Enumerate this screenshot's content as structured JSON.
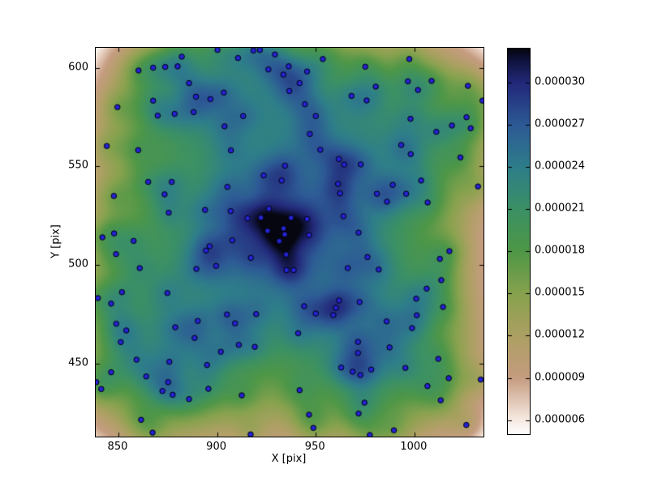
{
  "figure": {
    "background": "#ffffff"
  },
  "chart_data": {
    "type": "scatter",
    "title": "",
    "xlabel": "X [pix]",
    "ylabel": "Y [pix]",
    "xlim": [
      838.5,
      1035.0
    ],
    "ylim": [
      413.0,
      610.1
    ],
    "xticks": [
      850,
      900,
      950,
      1000
    ],
    "xtick_labels": [
      "850",
      "900",
      "950",
      "1000"
    ],
    "yticks": [
      450,
      500,
      550,
      600
    ],
    "ytick_labels": [
      "450",
      "500",
      "550",
      "600"
    ],
    "grid": false,
    "legend": null,
    "marker": {
      "shape": "circle",
      "fill": "#2323d0",
      "edge": "#000008",
      "radius_px": 3.3
    },
    "density_field": {
      "description": "Gaussian kernel density estimate of the scatter points, shown as background heatmap; white/pink = low density, black/navy = high density (gist_earth reversed style)",
      "peak_xy": [
        932,
        517
      ],
      "sigma_broad": 26,
      "sigma_sharp": 6,
      "weight_broad": 0.7,
      "weight_sharp": 0.3,
      "boost": 1.12,
      "gamma": 0.8,
      "colormap_stops": [
        [
          0.0,
          "#ffffff"
        ],
        [
          0.045,
          "#f4e5db"
        ],
        [
          0.146,
          "#c59c80"
        ],
        [
          0.255,
          "#ada063"
        ],
        [
          0.365,
          "#87a24e"
        ],
        [
          0.474,
          "#4f9747"
        ],
        [
          0.584,
          "#3b9065"
        ],
        [
          0.693,
          "#2e7e8a"
        ],
        [
          0.803,
          "#2d5a95"
        ],
        [
          0.912,
          "#23297a"
        ],
        [
          0.965,
          "#121644"
        ],
        [
          1.0,
          "#060610"
        ]
      ]
    },
    "colorbar": {
      "position": "right",
      "vmin": 5e-06,
      "vmax": 3.24e-05,
      "tick_values": [
        3e-05,
        2.7e-05,
        2.4e-05,
        2.1e-05,
        1.8e-05,
        1.5e-05,
        1.2e-05,
        9e-06,
        6e-06
      ],
      "tick_labels": [
        "0.000030",
        "0.000027",
        "0.000024",
        "0.000021",
        "0.000018",
        "0.000015",
        "0.000012",
        "0.000009",
        "0.000006"
      ]
    },
    "points": [
      [
        882.1,
        605.6
      ],
      [
        900.2,
        609.0
      ],
      [
        918.4,
        608.7
      ],
      [
        921.7,
        609.0
      ],
      [
        929.3,
        606.7
      ],
      [
        910.6,
        604.9
      ],
      [
        936.3,
        600.7
      ],
      [
        860.2,
        598.6
      ],
      [
        867.6,
        600.0
      ],
      [
        873.7,
        600.4
      ],
      [
        880.0,
        600.7
      ],
      [
        926.0,
        599.1
      ],
      [
        933.6,
        596.5
      ],
      [
        885.8,
        592.2
      ],
      [
        889.3,
        585.3
      ],
      [
        896.6,
        584.1
      ],
      [
        903.4,
        587.4
      ],
      [
        936.6,
        588.2
      ],
      [
        867.6,
        583.3
      ],
      [
        849.5,
        580.0
      ],
      [
        869.9,
        575.7
      ],
      [
        878.5,
        576.6
      ],
      [
        888.1,
        577.5
      ],
      [
        913.2,
        575.5
      ],
      [
        903.8,
        570.3
      ],
      [
        844.1,
        560.3
      ],
      [
        860.0,
        558.2
      ],
      [
        907.0,
        558.1
      ],
      [
        934.4,
        550.3
      ],
      [
        923.6,
        545.4
      ],
      [
        932.7,
        542.8
      ],
      [
        865.1,
        542.1
      ],
      [
        877.0,
        542.1
      ],
      [
        905.2,
        539.6
      ],
      [
        873.4,
        535.8
      ],
      [
        847.7,
        535.0
      ],
      [
        875.5,
        526.5
      ],
      [
        893.9,
        527.9
      ],
      [
        906.9,
        527.3
      ],
      [
        915.4,
        523.6
      ],
      [
        922.2,
        524.0
      ],
      [
        926.2,
        528.5
      ],
      [
        925.6,
        517.3
      ],
      [
        847.8,
        516.0
      ],
      [
        841.9,
        514.0
      ],
      [
        857.7,
        512.2
      ],
      [
        907.7,
        512.5
      ],
      [
        934.3,
        515.5
      ],
      [
        953.6,
        604.4
      ],
      [
        975.1,
        600.5
      ],
      [
        945.6,
        598.1
      ],
      [
        941.8,
        592.2
      ],
      [
        996.7,
        593.1
      ],
      [
        997.4,
        604.4
      ],
      [
        1008.7,
        593.3
      ],
      [
        980.4,
        590.4
      ],
      [
        1001.8,
        588.7
      ],
      [
        1027.1,
        590.8
      ],
      [
        968.1,
        585.7
      ],
      [
        975.8,
        583.4
      ],
      [
        1034.5,
        583.3
      ],
      [
        944.5,
        581.5
      ],
      [
        950.0,
        575.5
      ],
      [
        998.0,
        574.1
      ],
      [
        1026.4,
        574.9
      ],
      [
        1019.0,
        570.7
      ],
      [
        1028.5,
        569.3
      ],
      [
        947.0,
        566.4
      ],
      [
        1011.1,
        567.5
      ],
      [
        952.3,
        558.4
      ],
      [
        993.3,
        560.8
      ],
      [
        961.7,
        553.7
      ],
      [
        964.4,
        550.9
      ],
      [
        972.8,
        551.0
      ],
      [
        998.1,
        556.2
      ],
      [
        1023.3,
        554.5
      ],
      [
        1003.4,
        542.8
      ],
      [
        1032.2,
        539.8
      ],
      [
        961.3,
        541.1
      ],
      [
        962.3,
        536.3
      ],
      [
        989.0,
        540.6
      ],
      [
        981.0,
        536.1
      ],
      [
        995.8,
        536.1
      ],
      [
        986.1,
        532.1
      ],
      [
        1006.7,
        531.7
      ],
      [
        964.0,
        524.7
      ],
      [
        945.6,
        523.3
      ],
      [
        937.5,
        523.9
      ],
      [
        971.7,
        516.4
      ],
      [
        946.6,
        515.1
      ],
      [
        933.7,
        518.5
      ],
      [
        931.5,
        512.1
      ],
      [
        935.2,
        497.4
      ],
      [
        848.8,
        505.5
      ],
      [
        896.2,
        509.5
      ],
      [
        894.4,
        507.3
      ],
      [
        917.1,
        503.6
      ],
      [
        860.8,
        498.4
      ],
      [
        889.5,
        498.0
      ],
      [
        899.5,
        499.5
      ],
      [
        935.0,
        505.3
      ],
      [
        851.8,
        486.2
      ],
      [
        839.6,
        483.2
      ],
      [
        846.3,
        480.4
      ],
      [
        874.8,
        485.8
      ],
      [
        905.0,
        474.9
      ],
      [
        919.8,
        475.1
      ],
      [
        909.1,
        470.4
      ],
      [
        848.9,
        470.2
      ],
      [
        854.0,
        466.8
      ],
      [
        878.8,
        468.4
      ],
      [
        890.2,
        471.6
      ],
      [
        888.6,
        463.0
      ],
      [
        851.2,
        460.9
      ],
      [
        911.0,
        459.5
      ],
      [
        919.1,
        458.5
      ],
      [
        901.9,
        456.0
      ],
      [
        859.2,
        452.0
      ],
      [
        875.8,
        450.9
      ],
      [
        846.3,
        445.6
      ],
      [
        864.1,
        443.5
      ],
      [
        894.9,
        449.3
      ],
      [
        875.2,
        440.6
      ],
      [
        838.8,
        440.6
      ],
      [
        841.3,
        437.1
      ],
      [
        872.3,
        436.1
      ],
      [
        877.5,
        434.2
      ],
      [
        895.6,
        437.2
      ],
      [
        885.8,
        432.0
      ],
      [
        912.5,
        433.9
      ],
      [
        861.5,
        421.5
      ],
      [
        867.3,
        415.0
      ],
      [
        917.0,
        414.1
      ],
      [
        976.2,
        504.0
      ],
      [
        938.8,
        497.4
      ],
      [
        966.2,
        498.4
      ],
      [
        981.9,
        497.7
      ],
      [
        1017.7,
        507.0
      ],
      [
        1012.9,
        503.1
      ],
      [
        1013.6,
        492.3
      ],
      [
        1006.2,
        488.0
      ],
      [
        1000.9,
        482.9
      ],
      [
        944.1,
        479.1
      ],
      [
        961.8,
        482.0
      ],
      [
        972.2,
        481.2
      ],
      [
        960.2,
        478.3
      ],
      [
        950.0,
        475.4
      ],
      [
        958.9,
        474.6
      ],
      [
        1014.5,
        478.7
      ],
      [
        1001.2,
        474.5
      ],
      [
        985.9,
        471.4
      ],
      [
        998.8,
        468.0
      ],
      [
        941.1,
        465.4
      ],
      [
        971.4,
        461.0
      ],
      [
        987.4,
        458.2
      ],
      [
        971.4,
        455.4
      ],
      [
        1012.1,
        452.4
      ],
      [
        962.9,
        448.0
      ],
      [
        968.7,
        445.9
      ],
      [
        972.6,
        444.2
      ],
      [
        978.1,
        447.0
      ],
      [
        995.4,
        447.8
      ],
      [
        1017.4,
        442.6
      ],
      [
        1033.6,
        441.9
      ],
      [
        941.8,
        436.5
      ],
      [
        1006.6,
        438.6
      ],
      [
        974.7,
        430.2
      ],
      [
        1013.3,
        431.4
      ],
      [
        946.6,
        424.1
      ],
      [
        971.7,
        424.7
      ],
      [
        948.8,
        417.4
      ],
      [
        989.6,
        416.2
      ],
      [
        1026.3,
        418.9
      ],
      [
        977.4,
        413.8
      ]
    ]
  }
}
